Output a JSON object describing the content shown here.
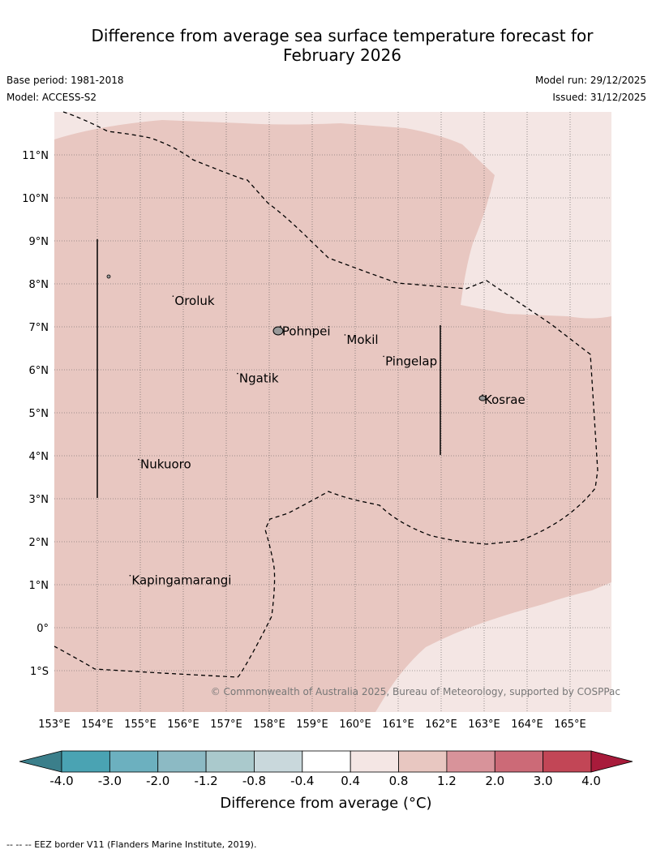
{
  "title_line1": "Difference from average sea surface temperature forecast for",
  "title_line2": "February 2026",
  "base_period": "Base period: 1981-2018",
  "model": "Model: ACCESS-S2",
  "model_run": "Model run: 29/12/2025",
  "issued": "Issued: 31/12/2025",
  "copyright": "© Commonwealth of Australia 2025, Bureau of Meteorology, supported by COSPPac",
  "colorbar_label": "Difference from average (°C)",
  "footnote": "-- -- -- EEZ border V11 (Flanders Marine Institute, 2019).",
  "lon_labels": [
    "153°E",
    "154°E",
    "155°E",
    "156°E",
    "157°E",
    "158°E",
    "159°E",
    "160°E",
    "161°E",
    "162°E",
    "163°E",
    "164°E",
    "165°E"
  ],
  "lat_labels": [
    "11°N",
    "10°N",
    "9°N",
    "8°N",
    "7°N",
    "6°N",
    "5°N",
    "4°N",
    "3°N",
    "2°N",
    "1°N",
    "0°",
    "1°S"
  ],
  "places": [
    {
      "name": "Oroluk",
      "lon": 155.8,
      "lat": 7.6
    },
    {
      "name": "Pohnpei",
      "lon": 158.3,
      "lat": 6.9
    },
    {
      "name": "Mokil",
      "lon": 159.8,
      "lat": 6.7
    },
    {
      "name": "Pingelap",
      "lon": 160.7,
      "lat": 6.2
    },
    {
      "name": "Ngatik",
      "lon": 157.3,
      "lat": 5.8
    },
    {
      "name": "Kosrae",
      "lon": 163.0,
      "lat": 5.3
    },
    {
      "name": "Nukuoro",
      "lon": 155.0,
      "lat": 3.8
    },
    {
      "name": "Kapingamarangi",
      "lon": 154.8,
      "lat": 1.1
    }
  ],
  "colorbar": {
    "ticks": [
      "-4.0",
      "-3.0",
      "-2.0",
      "-1.2",
      "-0.8",
      "-0.4",
      "0.4",
      "0.8",
      "1.2",
      "2.0",
      "3.0",
      "4.0"
    ],
    "colors": [
      "#4aa3b3",
      "#6cb0bf",
      "#8cbac4",
      "#aac9cc",
      "#c9d8dc",
      "#ffffff",
      "#f4e6e4",
      "#e8c7c1",
      "#d8939a",
      "#cc6a77",
      "#c24656"
    ],
    "under_color": "#3b7f8b",
    "over_color": "#a81b3b"
  },
  "map": {
    "lon_range": [
      153.0,
      166.0
    ],
    "lat_range": [
      -2.0,
      12.0
    ],
    "fill_main": "#e8c7c1",
    "fill_light": "#f4e6e4"
  }
}
